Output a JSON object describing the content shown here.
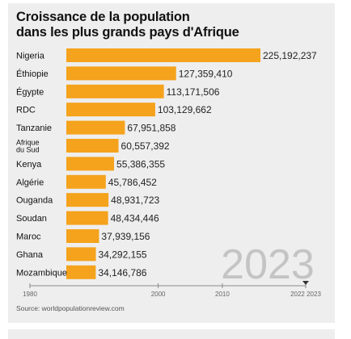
{
  "title_lines": [
    "Croissance de la population",
    "dans les plus grands pays d'Afrique"
  ],
  "source": "Source: worldpopulationreview.com",
  "chart_data": {
    "type": "bar",
    "orientation": "horizontal",
    "title": "Croissance de la population dans les plus grands pays d'Afrique",
    "categories": [
      "Nigeria",
      "Éthiopie",
      "Égypte",
      "RDC",
      "Tanzanie",
      "Afrique du Sud",
      "Kenya",
      "Algérie",
      "Ouganda",
      "Soudan",
      "Maroc",
      "Ghana",
      "Mozambique"
    ],
    "category_lines": [
      [
        "Nigeria"
      ],
      [
        "Éthiopie"
      ],
      [
        "Égypte"
      ],
      [
        "RDC"
      ],
      [
        "Tanzanie"
      ],
      [
        "Afrique",
        "du Sud"
      ],
      [
        "Kenya"
      ],
      [
        "Algérie"
      ],
      [
        "Ouganda"
      ],
      [
        "Soudan"
      ],
      [
        "Maroc"
      ],
      [
        "Ghana"
      ],
      [
        "Mozambique"
      ]
    ],
    "values": [
      225192237,
      127359410,
      113171506,
      103129662,
      67951858,
      60557392,
      55386355,
      45786452,
      48931723,
      48434446,
      37939156,
      34292155,
      34146786
    ],
    "value_labels": [
      "225,192,237",
      "127,359,410",
      "113,171,506",
      "103,129,662",
      "67,951,858",
      "60,557,392",
      "55,386,355",
      "45,786,452",
      "48,931,723",
      "48,434,446",
      "37,939,156",
      "34,292,155",
      "34,146,786"
    ],
    "timeline_ticks": [
      "1980",
      "2000",
      "2010",
      "2022 2023"
    ],
    "timeline_range": [
      1980,
      2023
    ],
    "big_year": "2023",
    "bar_color": "#f5a21c",
    "value_max": 225192237,
    "legend": "none",
    "grid": false
  }
}
